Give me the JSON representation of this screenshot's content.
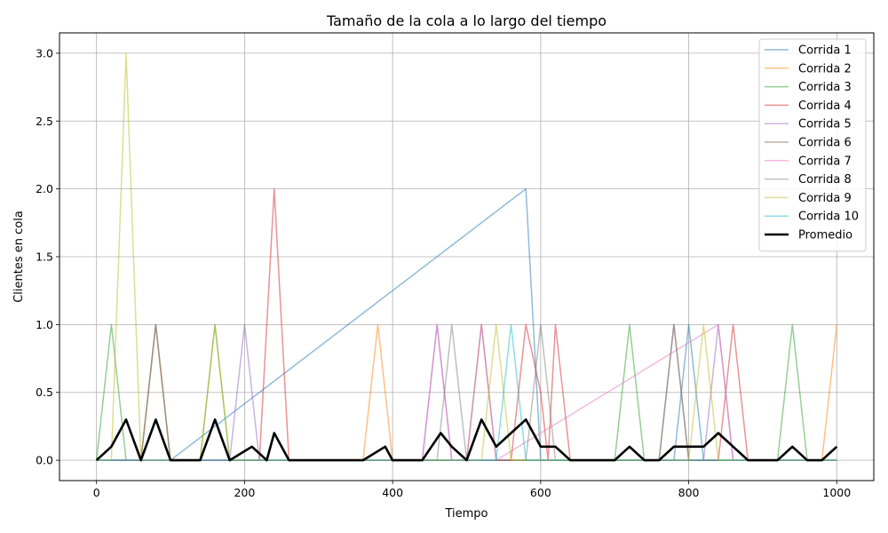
{
  "chart_data": {
    "type": "line",
    "title": "Tamaño de la cola a lo largo del tiempo",
    "xlabel": "Tiempo",
    "ylabel": "Clientes en cola",
    "xlim": [
      -50,
      1050
    ],
    "ylim": [
      -0.15,
      3.15
    ],
    "xticks": [
      0,
      200,
      400,
      600,
      800,
      1000
    ],
    "yticks": [
      0.0,
      0.5,
      1.0,
      1.5,
      2.0,
      2.5,
      3.0
    ],
    "xtick_labels": [
      "0",
      "200",
      "400",
      "600",
      "800",
      "1000"
    ],
    "ytick_labels": [
      "0.0",
      "0.5",
      "1.0",
      "1.5",
      "2.0",
      "2.5",
      "3.0"
    ],
    "grid": true,
    "legend_position": "top-right",
    "series": [
      {
        "name": "Corrida 1",
        "color": "#1f77b4",
        "x": [
          0,
          60,
          80,
          100,
          580,
          600,
          780,
          800,
          820,
          1000
        ],
        "y": [
          0,
          0,
          1,
          0,
          2,
          0,
          0,
          1,
          0,
          0
        ]
      },
      {
        "name": "Corrida 2",
        "color": "#ff7f0e",
        "x": [
          0,
          60,
          80,
          100,
          360,
          380,
          400,
          980,
          1000
        ],
        "y": [
          0,
          0,
          1,
          0,
          0,
          1,
          0,
          0,
          1
        ]
      },
      {
        "name": "Corrida 3",
        "color": "#2ca02c",
        "x": [
          0,
          20,
          40,
          140,
          160,
          180,
          700,
          720,
          740,
          920,
          940,
          960,
          1000
        ],
        "y": [
          0,
          1,
          0,
          0,
          1,
          0,
          0,
          1,
          0,
          0,
          1,
          0,
          0
        ]
      },
      {
        "name": "Corrida 4",
        "color": "#d62728",
        "x": [
          0,
          220,
          240,
          260,
          560,
          580,
          600,
          610,
          620,
          640,
          840,
          860,
          880,
          1000
        ],
        "y": [
          0,
          0,
          2,
          0,
          0,
          1,
          0.5,
          0,
          1,
          0,
          0,
          1,
          0,
          0
        ]
      },
      {
        "name": "Corrida 5",
        "color": "#9467bd",
        "x": [
          0,
          180,
          200,
          220,
          440,
          460,
          480,
          820,
          840,
          860,
          1000
        ],
        "y": [
          0,
          0,
          1,
          0,
          0,
          1,
          0,
          0,
          1,
          0,
          0
        ]
      },
      {
        "name": "Corrida 6",
        "color": "#8c564b",
        "x": [
          0,
          500,
          520,
          540,
          760,
          780,
          800,
          1000
        ],
        "y": [
          0,
          0,
          1,
          0,
          0,
          1,
          0,
          0
        ]
      },
      {
        "name": "Corrida 7",
        "color": "#e377c2",
        "x": [
          0,
          440,
          460,
          480,
          500,
          520,
          540,
          840,
          860,
          1000
        ],
        "y": [
          0,
          0,
          1,
          0,
          0,
          1,
          0,
          1,
          0,
          0
        ]
      },
      {
        "name": "Corrida 8",
        "color": "#7f7f7f",
        "x": [
          0,
          60,
          80,
          100,
          460,
          480,
          500,
          580,
          600,
          620,
          760,
          780,
          800,
          1000
        ],
        "y": [
          0,
          0,
          1,
          0,
          0,
          1,
          0,
          0,
          1,
          0,
          0,
          1,
          0,
          0
        ]
      },
      {
        "name": "Corrida 9",
        "color": "#bcbd22",
        "x": [
          0,
          20,
          40,
          60,
          140,
          160,
          180,
          520,
          540,
          560,
          800,
          820,
          840,
          1000
        ],
        "y": [
          0,
          0,
          3,
          0,
          0,
          1,
          0,
          0,
          1,
          0,
          0,
          1,
          0,
          0
        ]
      },
      {
        "name": "Corrida 10",
        "color": "#17becf",
        "x": [
          0,
          540,
          560,
          580,
          1000
        ],
        "y": [
          0,
          0,
          1,
          0,
          0
        ]
      },
      {
        "name": "Promedio",
        "color": "#000000",
        "x": [
          0,
          20,
          40,
          60,
          80,
          100,
          140,
          160,
          180,
          210,
          230,
          240,
          260,
          360,
          390,
          400,
          440,
          465,
          480,
          500,
          520,
          540,
          560,
          580,
          600,
          620,
          640,
          700,
          720,
          740,
          760,
          780,
          800,
          820,
          840,
          860,
          880,
          920,
          940,
          960,
          980,
          1000
        ],
        "y": [
          0,
          0.1,
          0.3,
          0,
          0.3,
          0,
          0,
          0.3,
          0,
          0.1,
          0,
          0.2,
          0,
          0,
          0.1,
          0,
          0,
          0.2,
          0.1,
          0,
          0.3,
          0.1,
          0.2,
          0.3,
          0.1,
          0.1,
          0,
          0,
          0.1,
          0,
          0,
          0.1,
          0.1,
          0.1,
          0.2,
          0.1,
          0,
          0,
          0.1,
          0,
          0,
          0.1
        ]
      }
    ]
  }
}
